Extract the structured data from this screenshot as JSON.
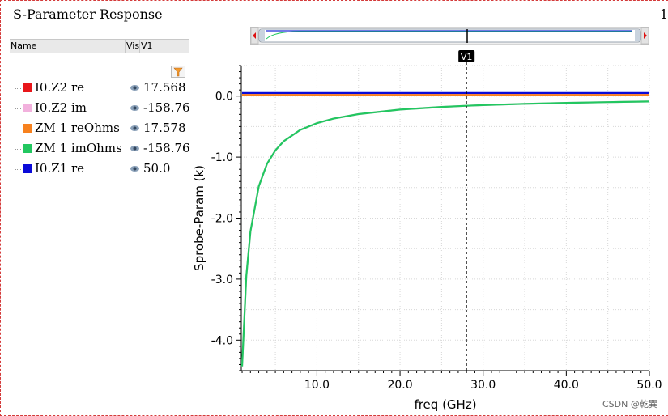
{
  "window": {
    "title": "S-Parameter Response",
    "title_suffix": "1"
  },
  "trace_table": {
    "columns": {
      "name": "Name",
      "vis": "Vis",
      "value": "V1"
    },
    "traces": [
      {
        "name": "I0.Z2 re",
        "value": "17.568",
        "color": "#e8161a"
      },
      {
        "name": "I0.Z2 im",
        "value": "-158.76",
        "color": "#f2b1dd"
      },
      {
        "name": "ZM 1 reOhms",
        "value": "17.578",
        "color": "#f7811e"
      },
      {
        "name": "ZM 1 imOhms",
        "value": "-158.76",
        "color": "#22c760"
      },
      {
        "name": "I0.Z1 re",
        "value": "50.0",
        "color": "#0a0ad8"
      }
    ]
  },
  "cursor": {
    "label": "V1",
    "x_value": 28.0
  },
  "chart_data": {
    "type": "line",
    "xlabel": "freq (GHz)",
    "ylabel": "Sprobe-Param (k)",
    "xlim": [
      0.9,
      50.0
    ],
    "ylim": [
      -4.5,
      0.5
    ],
    "x_ticks": [
      10.0,
      20.0,
      30.0,
      40.0,
      50.0
    ],
    "x_tick_labels": [
      "10.0",
      "20.0",
      "30.0",
      "40.0",
      "50.0"
    ],
    "y_ticks": [
      0.0,
      -1.0,
      -2.0,
      -3.0,
      -4.0
    ],
    "y_tick_labels": [
      "0.0",
      "-1.0",
      "-2.0",
      "-3.0",
      "-4.0"
    ],
    "grid": true,
    "series": [
      {
        "name": "I0.Z2 re",
        "color": "#e8161a",
        "x": [
          1.0,
          50.0
        ],
        "y": [
          0.0176,
          0.0176
        ]
      },
      {
        "name": "ZM 1 reOhms",
        "color": "#f7811e",
        "x": [
          1.0,
          50.0
        ],
        "y": [
          0.0176,
          0.0176
        ]
      },
      {
        "name": "I0.Z1 re",
        "color": "#0a0ad8",
        "x": [
          1.0,
          50.0
        ],
        "y": [
          0.05,
          0.05
        ]
      },
      {
        "name": "I0.Z2 im",
        "color": "#f2b1dd",
        "x": [
          1.0,
          1.5,
          2.0,
          3.0,
          4.0,
          5.0,
          6.0,
          8.0,
          10.0,
          12.0,
          15.0,
          20.0,
          25.0,
          28.0,
          30.0,
          35.0,
          40.0,
          45.0,
          50.0
        ],
        "y": [
          -4.43,
          -2.95,
          -2.22,
          -1.48,
          -1.11,
          -0.89,
          -0.74,
          -0.555,
          -0.444,
          -0.37,
          -0.296,
          -0.222,
          -0.178,
          -0.159,
          -0.148,
          -0.127,
          -0.111,
          -0.099,
          -0.089
        ]
      },
      {
        "name": "ZM 1 imOhms",
        "color": "#22c760",
        "x": [
          1.0,
          1.5,
          2.0,
          3.0,
          4.0,
          5.0,
          6.0,
          8.0,
          10.0,
          12.0,
          15.0,
          20.0,
          25.0,
          28.0,
          30.0,
          35.0,
          40.0,
          45.0,
          50.0
        ],
        "y": [
          -4.43,
          -2.95,
          -2.22,
          -1.48,
          -1.11,
          -0.89,
          -0.74,
          -0.555,
          -0.444,
          -0.37,
          -0.296,
          -0.222,
          -0.178,
          -0.159,
          -0.148,
          -0.127,
          -0.111,
          -0.099,
          -0.089
        ]
      }
    ]
  },
  "watermark": "CSDN @乾巽"
}
